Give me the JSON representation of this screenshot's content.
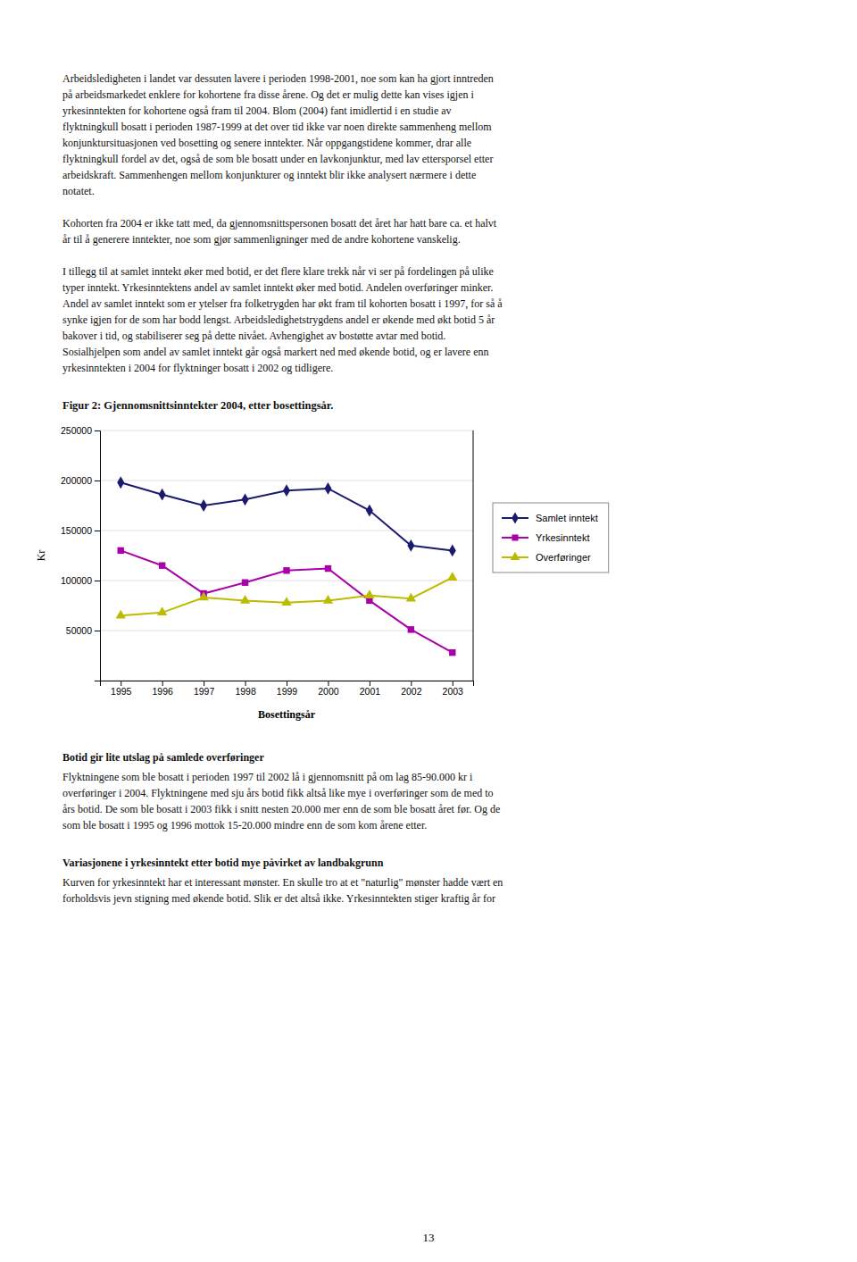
{
  "paragraphs_before": [
    [
      "Arbeidsledigheten i landet var dessuten lavere i perioden 1998-2001, noe som kan ha gjort inntreden",
      "på arbeidsmarkedet enklere for kohortene fra disse årene. Og det er mulig dette kan vises igjen i",
      "yrkesinntekten for kohortene også fram til 2004. Blom (2004) fant imidlertid i en studie av",
      "flyktningkull bosatt i perioden 1987-1999 at det over tid ikke var noen direkte sammenheng mellom",
      "konjunktursituasjonen ved bosetting og senere inntekter. Når oppgangstidene kommer, drar alle",
      "flyktningkull fordel av det, også de som ble bosatt under en lavkonjunktur, med lav ettersporsel etter",
      "arbeidskraft. Sammenhengen mellom konjunkturer og inntekt blir ikke analysert nærmere i dette",
      "notatet."
    ],
    [
      "Kohorten fra 2004 er ikke tatt med, da gjennomsnittspersonen bosatt det året har hatt bare ca. et halvt",
      "år til å generere inntekter, noe som gjør sammenligninger med de andre kohortene vanskelig."
    ],
    [
      "I tillegg til at samlet inntekt øker med botid, er det flere klare trekk når vi ser på fordelingen på ulike",
      "typer inntekt. Yrkesinntektens andel av samlet inntekt øker med botid. Andelen overføringer minker.",
      "Andel av samlet inntekt som er ytelser fra folketrygden har økt fram til kohorten bosatt i 1997, for så å",
      "synke igjen for de som har bodd lengst. Arbeidsledighetstrygdens andel er økende med økt botid 5 år",
      "bakover i tid, og stabiliserer seg på dette nivået. Avhengighet av bostøtte avtar med botid.",
      "Sosialhjelpen som andel av samlet inntekt går også markert ned med økende botid, og er lavere enn",
      "yrkesinntekten i 2004 for flyktninger bosatt i 2002 og tidligere."
    ]
  ],
  "chart_data": {
    "type": "line",
    "title": "Figur 2: Gjennomsnittsinntekter 2004, etter bosettingsår.",
    "x_label": "Bosettingsår",
    "y_label": "Kr",
    "x": [
      1995,
      1996,
      1997,
      1998,
      1999,
      2000,
      2001,
      2002,
      2003
    ],
    "xlim": [
      1994.5,
      2003.5
    ],
    "xticks": [
      1995,
      1996,
      1997,
      1998,
      1999,
      2000,
      2001,
      2002,
      2003
    ],
    "ylim": [
      0,
      250000
    ],
    "yticks": [
      {
        "value": 0,
        "label": null
      },
      50000,
      100000,
      150000,
      200000,
      250000
    ],
    "grid": true,
    "legend": "right",
    "series": [
      {
        "name": "Samlet inntekt",
        "color": "#1a1a6e",
        "marker": "diamond",
        "values": [
          198000,
          186000,
          175000,
          181000,
          190000,
          192000,
          170000,
          135000,
          130000
        ]
      },
      {
        "name": "Yrkesinntekt",
        "color": "#aa00aa",
        "marker": "square",
        "values": [
          130000,
          115000,
          87000,
          98000,
          110000,
          112000,
          80000,
          51000,
          28000
        ]
      },
      {
        "name": "Overføringer",
        "color": "#bbbb00",
        "marker": "triangle",
        "values": [
          65000,
          68000,
          83000,
          80000,
          78000,
          80000,
          85000,
          82000,
          103000
        ]
      }
    ]
  },
  "sections_after": [
    {
      "heading": "Botid gir lite utslag på samlede overføringer",
      "lines": [
        "Flyktningene som ble bosatt i perioden 1997 til 2002 lå i gjennomsnitt på om lag 85-90.000 kr i",
        "overføringer i 2004. Flyktningene med sju års botid fikk altså like mye i overføringer som de med to",
        "års botid. De som ble bosatt i 2003 fikk i snitt nesten 20.000 mer enn de som ble bosatt året før. Og de",
        "som ble bosatt i 1995 og 1996 mottok 15-20.000 mindre enn de som kom årene etter."
      ]
    },
    {
      "heading": "Variasjonene i yrkesinntekt etter botid mye påvirket av landbakgrunn",
      "lines": [
        "Kurven for yrkesinntekt har et interessant mønster. En skulle tro at et \"naturlig\" mønster hadde vært en",
        "forholdsvis jevn stigning med økende botid. Slik er det altså ikke. Yrkesinntekten stiger kraftig år for"
      ]
    }
  ],
  "page_number": 13
}
